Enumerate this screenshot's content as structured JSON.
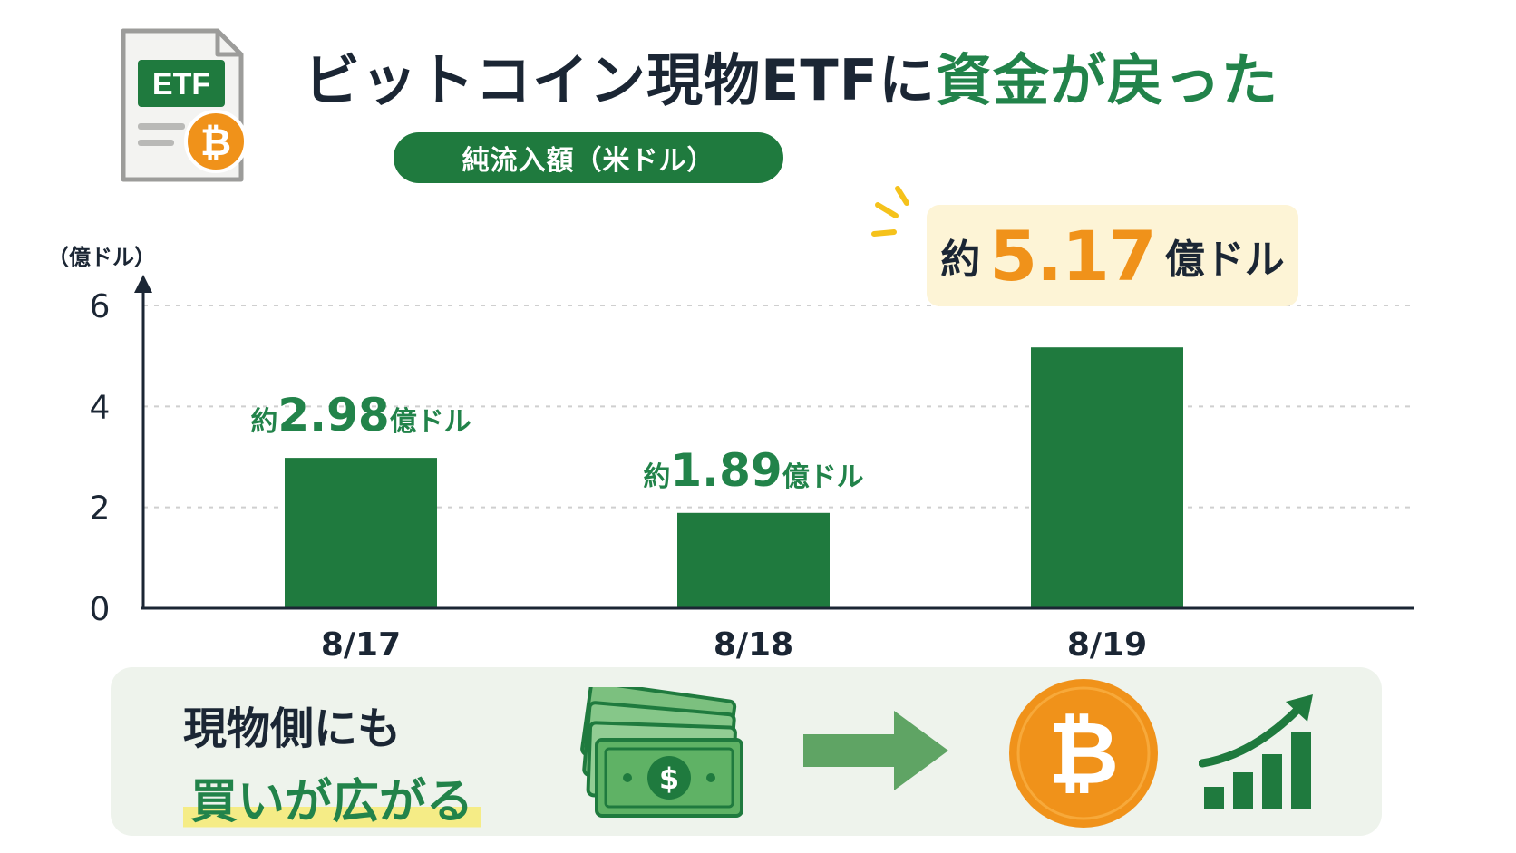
{
  "header": {
    "title_main": "ビットコイン現物ETFに",
    "title_highlight": "資金が戻った",
    "subtitle": "純流入額（米ドル）",
    "etf_icon_text": "ETF"
  },
  "chart_data": {
    "type": "bar",
    "categories": [
      "8/17",
      "8/18",
      "8/19"
    ],
    "values": [
      2.98,
      1.89,
      5.17
    ],
    "data_labels": [
      {
        "prefix": "約",
        "value": "2.98",
        "unit": "億ドル"
      },
      {
        "prefix": "約",
        "value": "1.89",
        "unit": "億ドル"
      },
      {
        "prefix": "約",
        "value": "5.17",
        "unit": "億ドル"
      }
    ],
    "ylabel": "（億ドル）",
    "ylim": [
      0,
      6
    ],
    "yticks": [
      0,
      2,
      4,
      6
    ],
    "grid": true,
    "grid_style": "dashed",
    "bar_color": "#1f7a3e"
  },
  "footer": {
    "line1": "現物側にも",
    "line2": "買いが広がる",
    "icons": [
      "money-stack-icon",
      "right-arrow-icon",
      "bitcoin-icon",
      "growth-chart-icon"
    ]
  },
  "colors": {
    "green": "#1f7a3e",
    "orange": "#f0921a",
    "navy": "#1b2634",
    "highlight_yellow": "#f5ec86"
  }
}
